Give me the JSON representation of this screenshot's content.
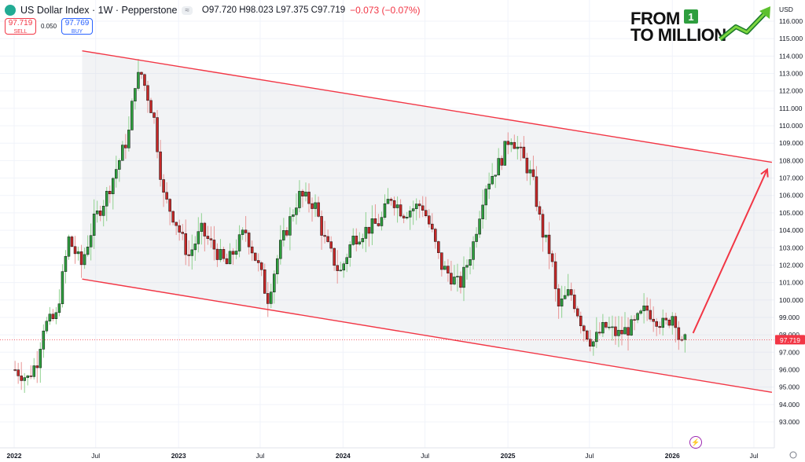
{
  "header": {
    "title": "US Dollar Index · 1W · Pepperstone",
    "ohlc": "O97.720 H98.023 L97.375 C97.719",
    "change": "−0.073 (−0.07%)",
    "pill": "≈"
  },
  "trade": {
    "sell_price": "97.719",
    "sell_label": "SELL",
    "spread": "0.050",
    "buy_price": "97.769",
    "buy_label": "BUY"
  },
  "logo": {
    "line1": "FROM",
    "line2": "TO MILLION",
    "badge": "1"
  },
  "chart_data": {
    "type": "candlestick",
    "axis_currency": "USD",
    "y_ticks": [
      "93.000",
      "94.000",
      "95.000",
      "96.000",
      "97.000",
      "98.000",
      "99.000",
      "100.000",
      "101.000",
      "102.000",
      "103.000",
      "104.000",
      "105.000",
      "106.000",
      "107.000",
      "108.000",
      "109.000",
      "110.000",
      "111.000",
      "112.000",
      "113.000",
      "114.000",
      "115.000",
      "116.000"
    ],
    "x_labels": [
      "2022",
      "Jul",
      "2023",
      "Jul",
      "2024",
      "Jul",
      "2025",
      "Jul",
      "2026",
      "Jul"
    ],
    "current_price": "97.719",
    "path": [
      [
        "2022-01-03",
        96.0
      ],
      [
        "2022-01-31",
        95.5
      ],
      [
        "2022-02-21",
        96.5
      ],
      [
        "2022-03-07",
        98.5
      ],
      [
        "2022-04-04",
        99.0
      ],
      [
        "2022-05-02",
        103.5
      ],
      [
        "2022-05-30",
        102.0
      ],
      [
        "2022-06-27",
        104.5
      ],
      [
        "2022-07-25",
        106.0
      ],
      [
        "2022-08-22",
        108.0
      ],
      [
        "2022-09-12",
        109.5
      ],
      [
        "2022-09-26",
        112.5
      ],
      [
        "2022-10-10",
        113.0
      ],
      [
        "2022-11-07",
        110.5
      ],
      [
        "2022-11-28",
        106.0
      ],
      [
        "2022-12-26",
        104.5
      ],
      [
        "2023-01-23",
        102.5
      ],
      [
        "2023-02-20",
        104.0
      ],
      [
        "2023-03-20",
        103.0
      ],
      [
        "2023-04-17",
        102.0
      ],
      [
        "2023-05-29",
        104.0
      ],
      [
        "2023-07-03",
        101.5
      ],
      [
        "2023-07-17",
        100.0
      ],
      [
        "2023-08-14",
        103.0
      ],
      [
        "2023-09-25",
        106.0
      ],
      [
        "2023-10-30",
        105.5
      ],
      [
        "2023-11-20",
        103.5
      ],
      [
        "2023-12-25",
        101.5
      ],
      [
        "2024-01-22",
        103.5
      ],
      [
        "2024-02-19",
        104.0
      ],
      [
        "2024-03-25",
        104.5
      ],
      [
        "2024-04-15",
        106.0
      ],
      [
        "2024-05-13",
        105.0
      ],
      [
        "2024-06-24",
        105.5
      ],
      [
        "2024-07-15",
        104.0
      ],
      [
        "2024-08-05",
        102.0
      ],
      [
        "2024-09-16",
        100.8
      ],
      [
        "2024-10-14",
        103.0
      ],
      [
        "2024-11-11",
        106.5
      ],
      [
        "2024-12-16",
        108.0
      ],
      [
        "2025-01-06",
        109.5
      ],
      [
        "2025-01-27",
        108.5
      ],
      [
        "2025-02-24",
        107.0
      ],
      [
        "2025-03-17",
        104.0
      ],
      [
        "2025-04-07",
        102.5
      ],
      [
        "2025-04-21",
        99.5
      ],
      [
        "2025-05-19",
        100.5
      ],
      [
        "2025-06-16",
        98.5
      ],
      [
        "2025-07-07",
        97.5
      ],
      [
        "2025-08-04",
        98.5
      ],
      [
        "2025-09-01",
        98.0
      ],
      [
        "2025-10-06",
        98.5
      ],
      [
        "2025-11-03",
        99.5
      ],
      [
        "2025-11-24",
        99.0
      ],
      [
        "2025-12-15",
        98.5
      ],
      [
        "2026-01-05",
        99.3
      ],
      [
        "2026-01-19",
        97.3
      ],
      [
        "2026-02-02",
        97.7
      ]
    ],
    "channel": {
      "upper": [
        [
          "2022-06-01",
          114.3
        ],
        [
          "2026-08-10",
          107.9
        ]
      ],
      "lower": [
        [
          "2022-06-01",
          101.2
        ],
        [
          "2026-08-10",
          94.7
        ]
      ]
    },
    "projection_arrow": [
      [
        "2026-02-16",
        98.1
      ],
      [
        "2026-08-10",
        107.9
      ]
    ]
  }
}
